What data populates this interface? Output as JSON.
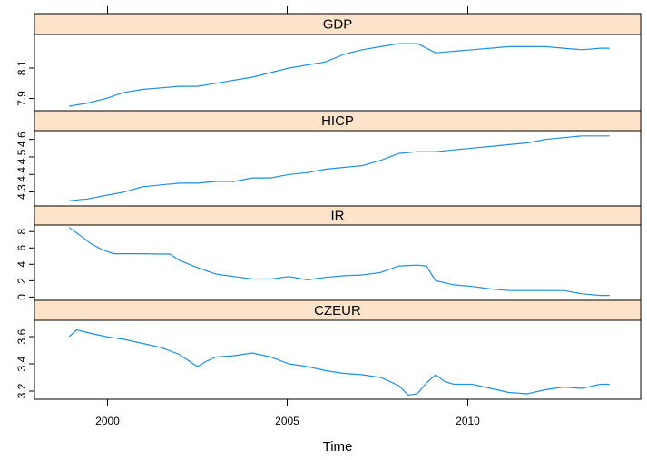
{
  "chart_data": {
    "type": "line",
    "title": "",
    "xlabel": "Time",
    "xlim": [
      1998.05,
      2014.6
    ],
    "x_ticks": [
      2000,
      2005,
      2010
    ],
    "x_tick_labels": [
      "2000",
      "2005",
      "2010"
    ],
    "line_color": "#1e8fe6",
    "strip_color": "#fde3c9",
    "panels": [
      {
        "name": "GDP",
        "ylim": [
          7.82,
          8.32
        ],
        "y_ticks": [
          7.9,
          8.1
        ],
        "y_tick_labels": [
          "7.9",
          "8.1"
        ],
        "x": [
          1999.0,
          1999.5,
          2000.0,
          2000.5,
          2001.0,
          2001.5,
          2002.0,
          2002.5,
          2003.0,
          2003.5,
          2004.0,
          2004.5,
          2005.0,
          2005.5,
          2006.0,
          2006.5,
          2007.0,
          2007.5,
          2008.0,
          2008.5,
          2008.75,
          2009.0,
          2009.5,
          2010.0,
          2010.5,
          2011.0,
          2011.5,
          2012.0,
          2012.5,
          2013.0,
          2013.5,
          2013.75
        ],
        "values": [
          7.85,
          7.87,
          7.9,
          7.94,
          7.96,
          7.97,
          7.98,
          7.98,
          8.0,
          8.02,
          8.04,
          8.07,
          8.1,
          8.12,
          8.14,
          8.19,
          8.22,
          8.24,
          8.26,
          8.26,
          8.23,
          8.2,
          8.21,
          8.22,
          8.23,
          8.24,
          8.24,
          8.24,
          8.23,
          8.22,
          8.23,
          8.23
        ]
      },
      {
        "name": "HICP",
        "ylim": [
          4.22,
          4.65
        ],
        "y_ticks": [
          4.3,
          4.4,
          4.5,
          4.6
        ],
        "y_tick_labels": [
          "4.3",
          "4.4",
          "4.5",
          "4.6"
        ],
        "x": [
          1999.0,
          1999.5,
          2000.0,
          2000.5,
          2001.0,
          2001.5,
          2002.0,
          2002.5,
          2003.0,
          2003.5,
          2004.0,
          2004.5,
          2005.0,
          2005.5,
          2006.0,
          2006.5,
          2007.0,
          2007.5,
          2008.0,
          2008.5,
          2009.0,
          2009.5,
          2010.0,
          2010.5,
          2011.0,
          2011.5,
          2012.0,
          2012.5,
          2013.0,
          2013.5,
          2013.75
        ],
        "values": [
          4.25,
          4.26,
          4.28,
          4.3,
          4.33,
          4.34,
          4.35,
          4.35,
          4.36,
          4.36,
          4.38,
          4.38,
          4.4,
          4.41,
          4.43,
          4.44,
          4.45,
          4.48,
          4.52,
          4.53,
          4.53,
          4.54,
          4.55,
          4.56,
          4.57,
          4.58,
          4.6,
          4.61,
          4.62,
          4.62,
          4.62
        ]
      },
      {
        "name": "IR",
        "ylim": [
          -0.4,
          8.8
        ],
        "y_ticks": [
          0,
          2,
          4,
          6,
          8
        ],
        "y_tick_labels": [
          "0",
          "2",
          "4",
          "6",
          "8"
        ],
        "x": [
          1999.0,
          1999.3,
          1999.6,
          1999.9,
          2000.2,
          2000.6,
          2001.0,
          2001.5,
          2001.75,
          2002.0,
          2002.5,
          2003.0,
          2003.5,
          2004.0,
          2004.5,
          2005.0,
          2005.5,
          2006.0,
          2006.5,
          2007.0,
          2007.5,
          2008.0,
          2008.5,
          2008.75,
          2009.0,
          2009.5,
          2010.0,
          2010.5,
          2011.0,
          2011.5,
          2012.0,
          2012.5,
          2013.0,
          2013.5,
          2013.75
        ],
        "values": [
          8.5,
          7.5,
          6.5,
          5.8,
          5.3,
          5.3,
          5.3,
          5.25,
          5.25,
          4.5,
          3.6,
          2.8,
          2.5,
          2.2,
          2.2,
          2.5,
          2.1,
          2.4,
          2.6,
          2.7,
          3.0,
          3.8,
          3.9,
          3.8,
          2.0,
          1.5,
          1.3,
          1.0,
          0.8,
          0.8,
          0.8,
          0.8,
          0.4,
          0.2,
          0.2
        ]
      },
      {
        "name": "CZEUR",
        "ylim": [
          3.14,
          3.72
        ],
        "y_ticks": [
          3.2,
          3.4,
          3.6
        ],
        "y_tick_labels": [
          "3.2",
          "3.4",
          "3.6"
        ],
        "x": [
          1999.0,
          1999.2,
          1999.5,
          2000.0,
          2000.5,
          2001.0,
          2001.5,
          2002.0,
          2002.5,
          2002.75,
          2003.0,
          2003.5,
          2004.0,
          2004.5,
          2005.0,
          2005.5,
          2006.0,
          2006.5,
          2007.0,
          2007.5,
          2008.0,
          2008.25,
          2008.5,
          2008.75,
          2009.0,
          2009.25,
          2009.5,
          2010.0,
          2010.5,
          2011.0,
          2011.5,
          2012.0,
          2012.5,
          2013.0,
          2013.5,
          2013.75
        ],
        "values": [
          3.6,
          3.65,
          3.63,
          3.6,
          3.58,
          3.55,
          3.52,
          3.47,
          3.38,
          3.42,
          3.45,
          3.46,
          3.48,
          3.45,
          3.4,
          3.38,
          3.35,
          3.33,
          3.32,
          3.3,
          3.24,
          3.17,
          3.18,
          3.26,
          3.32,
          3.27,
          3.25,
          3.25,
          3.22,
          3.19,
          3.18,
          3.21,
          3.23,
          3.22,
          3.25,
          3.25
        ]
      }
    ]
  }
}
